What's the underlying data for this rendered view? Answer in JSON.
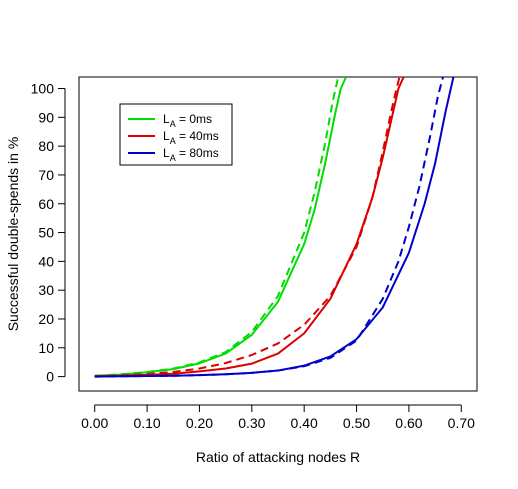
{
  "chart_data": {
    "type": "line",
    "title": "",
    "xlabel": "Ratio of attacking nodes R",
    "ylabel": "Successful double-spends in %",
    "xlim": [
      -0.03,
      0.73
    ],
    "ylim": [
      -5,
      104
    ],
    "x_ticks": [
      0.0,
      0.1,
      0.2,
      0.3,
      0.4,
      0.5,
      0.6,
      0.7
    ],
    "x_tick_labels": [
      "0.00",
      "0.10",
      "0.20",
      "0.30",
      "0.40",
      "0.50",
      "0.60",
      "0.70"
    ],
    "y_ticks": [
      0,
      10,
      20,
      30,
      40,
      50,
      60,
      70,
      80,
      90,
      100
    ],
    "y_tick_labels": [
      "0",
      "10",
      "20",
      "30",
      "40",
      "50",
      "60",
      "70",
      "80",
      "90",
      "100"
    ],
    "grid": false,
    "legend_position": "top-left",
    "legend": [
      {
        "prefix": "L",
        "sub": "A",
        "suffix": " = 0ms",
        "color": "#00dd00"
      },
      {
        "prefix": "L",
        "sub": "A",
        "suffix": " = 40ms",
        "color": "#dd0000"
      },
      {
        "prefix": "L",
        "sub": "A",
        "suffix": " = 80ms",
        "color": "#0000cc"
      }
    ],
    "series": [
      {
        "group": "L_A = 0ms",
        "style": "solid",
        "color": "#00dd00",
        "x": [
          0.0,
          0.05,
          0.1,
          0.15,
          0.2,
          0.25,
          0.3,
          0.35,
          0.4,
          0.42,
          0.44,
          0.46,
          0.47,
          0.48
        ],
        "y": [
          0.3,
          0.7,
          1.5,
          2.6,
          4.6,
          8.0,
          14.5,
          26.0,
          46.0,
          58.0,
          74.0,
          92.0,
          100.0,
          104.0
        ]
      },
      {
        "group": "L_A = 0ms",
        "style": "dashed",
        "color": "#00dd00",
        "x": [
          0.0,
          0.05,
          0.1,
          0.15,
          0.2,
          0.25,
          0.3,
          0.35,
          0.4,
          0.42,
          0.44,
          0.455,
          0.465
        ],
        "y": [
          0.3,
          0.8,
          1.6,
          2.8,
          4.9,
          8.5,
          15.5,
          28.0,
          50.0,
          64.0,
          81.0,
          96.0,
          104.0
        ]
      },
      {
        "group": "L_A = 40ms",
        "style": "solid",
        "color": "#dd0000",
        "x": [
          0.0,
          0.05,
          0.1,
          0.15,
          0.2,
          0.25,
          0.3,
          0.35,
          0.4,
          0.45,
          0.5,
          0.53,
          0.55,
          0.57,
          0.58,
          0.59
        ],
        "y": [
          0.1,
          0.3,
          0.6,
          1.0,
          1.8,
          2.8,
          4.5,
          8.0,
          15.0,
          27.0,
          46.0,
          62.0,
          76.0,
          92.0,
          100.0,
          104.0
        ]
      },
      {
        "group": "L_A = 40ms",
        "style": "dashed",
        "color": "#dd0000",
        "x": [
          0.0,
          0.05,
          0.1,
          0.15,
          0.2,
          0.25,
          0.3,
          0.35,
          0.4,
          0.45,
          0.5,
          0.53,
          0.55,
          0.565,
          0.575,
          0.582
        ],
        "y": [
          0.1,
          0.4,
          0.9,
          1.6,
          2.8,
          4.7,
          7.5,
          11.5,
          18.0,
          28.0,
          45.0,
          62.0,
          78.0,
          91.0,
          99.0,
          104.0
        ]
      },
      {
        "group": "L_A = 80ms",
        "style": "solid",
        "color": "#0000cc",
        "x": [
          0.0,
          0.05,
          0.1,
          0.15,
          0.2,
          0.25,
          0.3,
          0.35,
          0.4,
          0.45,
          0.5,
          0.55,
          0.6,
          0.63,
          0.65,
          0.67,
          0.685
        ],
        "y": [
          0.0,
          0.1,
          0.2,
          0.3,
          0.5,
          0.8,
          1.3,
          2.1,
          3.8,
          7.0,
          13.0,
          24.0,
          43.0,
          60.0,
          74.0,
          92.0,
          104.0
        ]
      },
      {
        "group": "L_A = 80ms",
        "style": "dashed",
        "color": "#0000cc",
        "x": [
          0.0,
          0.05,
          0.1,
          0.15,
          0.2,
          0.25,
          0.3,
          0.35,
          0.4,
          0.45,
          0.5,
          0.55,
          0.58,
          0.6,
          0.62,
          0.64,
          0.655,
          0.665
        ],
        "y": [
          0.0,
          0.1,
          0.2,
          0.3,
          0.5,
          0.8,
          1.3,
          2.1,
          3.6,
          6.5,
          12.5,
          27.0,
          40.0,
          52.0,
          66.0,
          83.0,
          97.0,
          104.0
        ]
      }
    ]
  }
}
